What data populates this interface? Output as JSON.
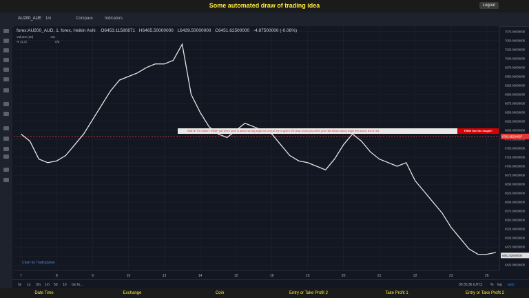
{
  "header": {
    "title": "Some automated draw of trading idea",
    "logout": "Logout"
  },
  "toolbar": {
    "symbol": "AU200_AUE",
    "interval": "1m",
    "compare": "Compare",
    "indicators": "Indicators"
  },
  "legend": {
    "symbol": "forex:AU200_AUD, 1, forex, Heikin Ashi",
    "open": "O6453.11580871",
    "high": "H6465.50000000",
    "low": "L6439.50000000",
    "close": "C6451.62500000",
    "change": "-4.87500000 (-0.08%)",
    "volume": "Volume (20)",
    "ai": "AI (1,1)",
    "na": "n/a"
  },
  "banner": {
    "text": "Wait till The 05AM ! SWAP just when price is above strong angle line and AI line is green OR draw shorts just when price still below strong angle line and AI line is red",
    "cta": "THEN See the magic!!"
  },
  "watermark": "Chart by TradingView",
  "ranges": [
    "5y",
    "1y",
    "3m",
    "1m",
    "5d",
    "1d",
    "Go to..."
  ],
  "status": {
    "time": "09:35:36 (UTC)",
    "percent": "%",
    "log": "log",
    "auto": "auto"
  },
  "footer": [
    "Date Time",
    "Exchange",
    "Coin",
    "Entry or Take Profit 2",
    "Take Profit 1",
    "Entry or Take Profit 2"
  ],
  "chart_data": {
    "type": "line",
    "x": [
      0,
      0.25,
      0.5,
      0.75,
      1,
      1.25,
      1.5,
      1.75,
      2,
      2.25,
      2.5,
      2.75,
      3,
      3.25,
      3.5,
      3.75,
      4,
      4.25,
      4.5,
      4.75,
      5,
      5.25,
      5.5,
      5.75,
      6,
      6.25,
      6.5,
      6.75,
      7,
      7.25,
      7.5,
      7.75,
      8,
      8.25,
      8.5,
      8.75,
      9,
      9.25,
      9.5,
      9.75,
      10,
      10.25,
      10.5,
      10.75,
      11,
      11.25,
      11.5,
      11.75,
      12,
      12.25,
      12.5,
      12.75,
      13,
      13.25
    ],
    "series": [
      {
        "name": "forex:AU200_AUD",
        "color": "#e6e6e6",
        "values": [
          6790,
          6770,
          6720,
          6710,
          6715,
          6730,
          6760,
          6790,
          6830,
          6870,
          6910,
          6940,
          6950,
          6960,
          6975,
          6985,
          6985,
          6995,
          7040,
          6900,
          6850,
          6810,
          6790,
          6780,
          6800,
          6820,
          6810,
          6800,
          6790,
          6760,
          6730,
          6715,
          6710,
          6700,
          6690,
          6720,
          6760,
          6790,
          6770,
          6740,
          6720,
          6710,
          6700,
          6710,
          6660,
          6630,
          6600,
          6570,
          6530,
          6500,
          6470,
          6455,
          6455,
          6460
        ]
      }
    ],
    "xlim": [
      -0.2,
      13.35
    ],
    "xticks": [
      {
        "value": 0,
        "label": "7"
      },
      {
        "value": 1,
        "label": "8"
      },
      {
        "value": 2,
        "label": "9"
      },
      {
        "value": 3,
        "label": "10"
      },
      {
        "value": 4,
        "label": "13"
      },
      {
        "value": 5,
        "label": "14"
      },
      {
        "value": 6,
        "label": "15"
      },
      {
        "value": 7,
        "label": "16"
      },
      {
        "value": 8,
        "label": "19"
      },
      {
        "value": 9,
        "label": "20"
      },
      {
        "value": 10,
        "label": "21"
      },
      {
        "value": 11,
        "label": "22"
      },
      {
        "value": 12,
        "label": "23"
      },
      {
        "value": 13,
        "label": "26"
      }
    ],
    "ylim": [
      6410,
      7090
    ],
    "yticks": [
      {
        "value": 6425,
        "label": "6425.00000000"
      },
      {
        "value": 6450,
        "label": "6450.00000000"
      },
      {
        "value": 6475,
        "label": "6475.00000000"
      },
      {
        "value": 6500,
        "label": "6500.00000000"
      },
      {
        "value": 6525,
        "label": "6525.00000000"
      },
      {
        "value": 6550,
        "label": "6550.00000000"
      },
      {
        "value": 6575,
        "label": "6575.00000000"
      },
      {
        "value": 6600,
        "label": "6600.00000000"
      },
      {
        "value": 6625,
        "label": "6625.00000000"
      },
      {
        "value": 6650,
        "label": "6650.00000000"
      },
      {
        "value": 6675,
        "label": "6675.00000000"
      },
      {
        "value": 6700,
        "label": "6700.00000000"
      },
      {
        "value": 6725,
        "label": "6725.00000000"
      },
      {
        "value": 6750,
        "label": "6750.00000000"
      },
      {
        "value": 6775,
        "label": "6775.00000000"
      },
      {
        "value": 6800,
        "label": "6800.00000000"
      },
      {
        "value": 6825,
        "label": "6825.00000000"
      },
      {
        "value": 6850,
        "label": "6850.00000000"
      },
      {
        "value": 6875,
        "label": "6875.00000000"
      },
      {
        "value": 6900,
        "label": "6900.00000000"
      },
      {
        "value": 6925,
        "label": "6925.00000000"
      },
      {
        "value": 6950,
        "label": "6950.00000000"
      },
      {
        "value": 6975,
        "label": "6975.00000000"
      },
      {
        "value": 7000,
        "label": "7000.00000000"
      },
      {
        "value": 7025,
        "label": "7025.00000000"
      },
      {
        "value": 7050,
        "label": "7050.00000000"
      },
      {
        "value": 7075,
        "label": "7075.00000000"
      }
    ],
    "price_line": 6782.95234097,
    "last_price": {
      "value": 6451.625,
      "label": "6451.62500000"
    },
    "grid": true
  }
}
